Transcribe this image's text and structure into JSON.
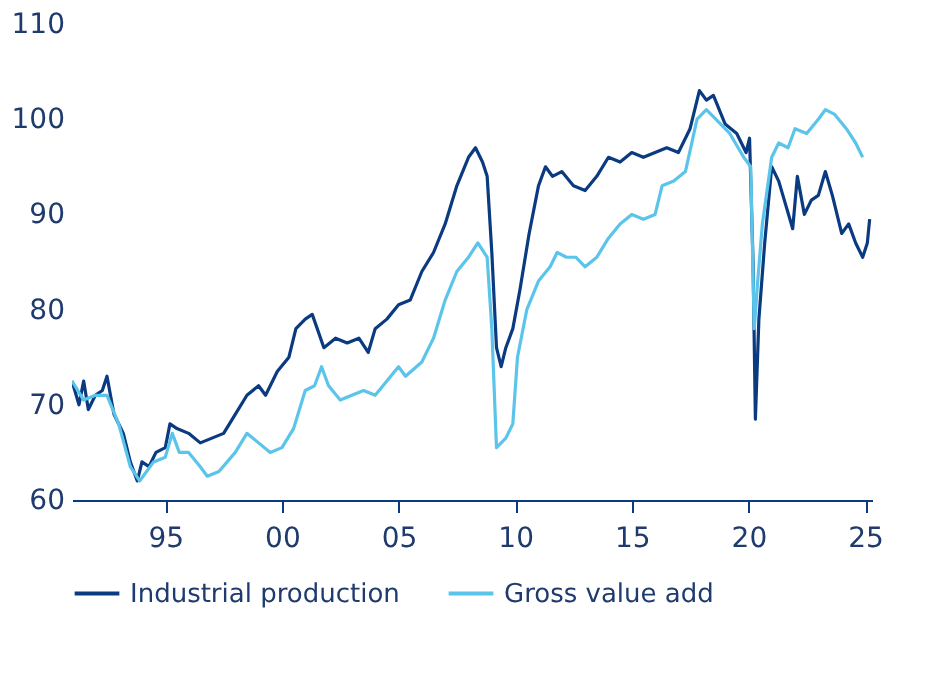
{
  "chart_data": {
    "type": "line",
    "xlim": [
      1991,
      2025.3
    ],
    "ylim": [
      60,
      110
    ],
    "xticks": [
      {
        "value": 1995,
        "label": "95"
      },
      {
        "value": 2000,
        "label": "00"
      },
      {
        "value": 2005,
        "label": "05"
      },
      {
        "value": 2010,
        "label": "10"
      },
      {
        "value": 2015,
        "label": "15"
      },
      {
        "value": 2020,
        "label": "20"
      },
      {
        "value": 2025,
        "label": "25"
      }
    ],
    "yticks": [
      60,
      70,
      80,
      90,
      100,
      110
    ],
    "grid": false,
    "legend": "bottom",
    "marker": "none",
    "line_style": "solid",
    "series": [
      {
        "name": "Industrial production",
        "color": "#0a3a80",
        "x": [
          1991.0,
          1991.3,
          1991.5,
          1991.7,
          1992.0,
          1992.3,
          1992.5,
          1992.8,
          1993.2,
          1993.5,
          1993.8,
          1994.0,
          1994.3,
          1994.6,
          1995.0,
          1995.2,
          1995.5,
          1996.0,
          1996.5,
          1997.0,
          1997.5,
          1998.0,
          1998.5,
          1999.0,
          1999.3,
          1999.8,
          2000.3,
          2000.6,
          2001.0,
          2001.3,
          2001.8,
          2002.3,
          2002.8,
          2003.3,
          2003.7,
          2004.0,
          2004.5,
          2005.0,
          2005.5,
          2006.0,
          2006.5,
          2007.0,
          2007.5,
          2008.0,
          2008.3,
          2008.6,
          2008.8,
          2009.0,
          2009.2,
          2009.4,
          2009.6,
          2009.9,
          2010.2,
          2010.6,
          2011.0,
          2011.3,
          2011.6,
          2012.0,
          2012.5,
          2013.0,
          2013.5,
          2014.0,
          2014.5,
          2015.0,
          2015.5,
          2016.0,
          2016.5,
          2017.0,
          2017.5,
          2017.9,
          2018.2,
          2018.5,
          2019.0,
          2019.5,
          2019.9,
          2020.05,
          2020.2,
          2020.3,
          2020.45,
          2020.7,
          2021.0,
          2021.3,
          2021.6,
          2021.9,
          2022.1,
          2022.4,
          2022.7,
          2023.0,
          2023.3,
          2023.6,
          2024.0,
          2024.3,
          2024.6,
          2024.9,
          2025.1,
          2025.2
        ],
        "values": [
          72.5,
          70,
          72.5,
          69.5,
          71,
          71.5,
          73,
          69,
          67,
          64,
          62,
          64,
          63.5,
          65,
          65.5,
          68,
          67.5,
          67,
          66,
          66.5,
          67,
          69,
          71,
          72,
          71,
          73.5,
          75,
          78,
          79,
          79.5,
          76,
          77,
          76.5,
          77,
          75.5,
          78,
          79,
          80.5,
          81,
          84,
          86,
          89,
          93,
          96,
          97,
          95.5,
          94,
          86,
          76,
          74,
          76,
          78,
          82,
          88,
          93,
          95,
          94,
          94.5,
          93,
          92.5,
          94,
          96,
          95.5,
          96.5,
          96,
          96.5,
          97,
          96.5,
          99,
          103,
          102,
          102.5,
          99.5,
          98.5,
          96.5,
          98,
          85,
          68.5,
          79,
          87,
          95,
          93.5,
          91,
          88.5,
          94,
          90,
          91.5,
          92,
          94.5,
          92,
          88,
          89,
          87,
          85.5,
          87,
          89.5
        ]
      },
      {
        "name": "Gross value add",
        "color": "#5bc4ea",
        "x": [
          1991.0,
          1991.5,
          1992.0,
          1992.5,
          1993.0,
          1993.5,
          1993.9,
          1994.5,
          1995.0,
          1995.3,
          1995.6,
          1996.0,
          1996.5,
          1996.8,
          1997.3,
          1998.0,
          1998.5,
          1999.0,
          1999.5,
          2000.0,
          2000.5,
          2001.0,
          2001.4,
          2001.7,
          2002.0,
          2002.5,
          2003.0,
          2003.5,
          2004.0,
          2004.5,
          2005.0,
          2005.3,
          2006.0,
          2006.5,
          2007.0,
          2007.5,
          2008.0,
          2008.4,
          2008.8,
          2009.0,
          2009.2,
          2009.6,
          2009.9,
          2010.1,
          2010.5,
          2011.0,
          2011.5,
          2011.8,
          2012.2,
          2012.6,
          2013.0,
          2013.5,
          2014.0,
          2014.5,
          2015.0,
          2015.5,
          2016.0,
          2016.3,
          2016.8,
          2017.3,
          2017.8,
          2018.2,
          2018.6,
          2019.2,
          2019.8,
          2020.1,
          2020.25,
          2020.4,
          2020.6,
          2021.0,
          2021.3,
          2021.7,
          2022.0,
          2022.5,
          2023.0,
          2023.3,
          2023.7,
          2024.2,
          2024.6,
          2024.9
        ],
        "values": [
          72.5,
          70.5,
          71,
          71,
          68,
          63.5,
          62,
          64,
          64.5,
          67,
          65,
          65,
          63.5,
          62.5,
          63,
          65,
          67,
          66,
          65,
          65.5,
          67.5,
          71.5,
          72,
          74,
          72,
          70.5,
          71,
          71.5,
          71,
          72.5,
          74,
          73,
          74.5,
          77,
          81,
          84,
          85.5,
          87,
          85.5,
          78,
          65.5,
          66.5,
          68,
          75,
          80,
          83,
          84.5,
          86,
          85.5,
          85.5,
          84.5,
          85.5,
          87.5,
          89,
          90,
          89.5,
          90,
          93,
          93.5,
          94.5,
          100,
          101,
          100,
          98.5,
          96,
          95,
          78,
          83,
          89,
          96,
          97.5,
          97,
          99,
          98.5,
          100,
          101,
          100.5,
          99,
          97.5,
          96
        ]
      }
    ]
  }
}
